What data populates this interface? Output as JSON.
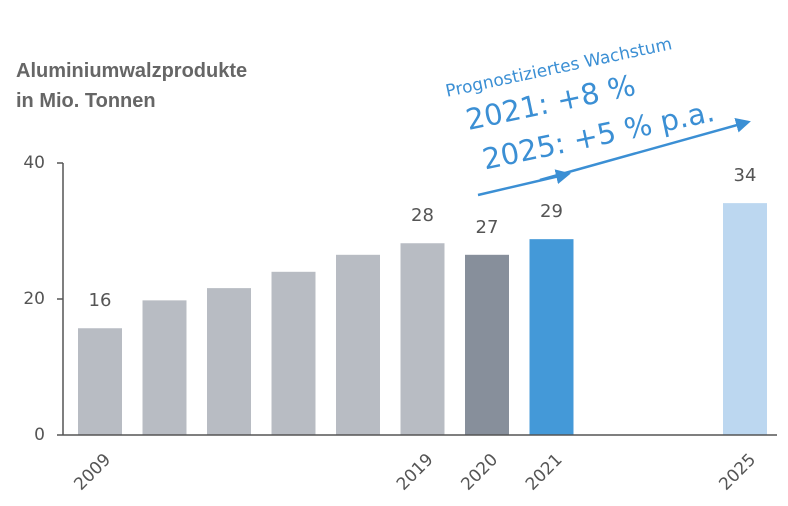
{
  "chart_data": {
    "type": "bar",
    "title": [
      "Aluminiumwalzprodukte",
      "in Mio. Tonnen"
    ],
    "annotations": [
      "Prognostiziertes Wachstum",
      "2021: +8 %",
      "2025: +5 % p.a."
    ],
    "categories": [
      "2009",
      null,
      null,
      null,
      null,
      "2019",
      "2020",
      "2021",
      null,
      null,
      "2025"
    ],
    "values": [
      15.7,
      19.8,
      21.6,
      24.0,
      26.5,
      28.2,
      26.5,
      28.8,
      null,
      null,
      34.1
    ],
    "value_labels": [
      "16",
      null,
      null,
      null,
      null,
      "28",
      "27",
      "29",
      null,
      null,
      "34"
    ],
    "colors": [
      "#b8bcc3",
      "#b8bcc3",
      "#b8bcc3",
      "#b8bcc3",
      "#b8bcc3",
      "#b8bcc3",
      "#878f9b",
      "#4499d8",
      null,
      null,
      "#bcd7f0"
    ],
    "ylim": [
      0,
      40
    ],
    "yticks": [
      0,
      20,
      40
    ],
    "grid": false
  }
}
